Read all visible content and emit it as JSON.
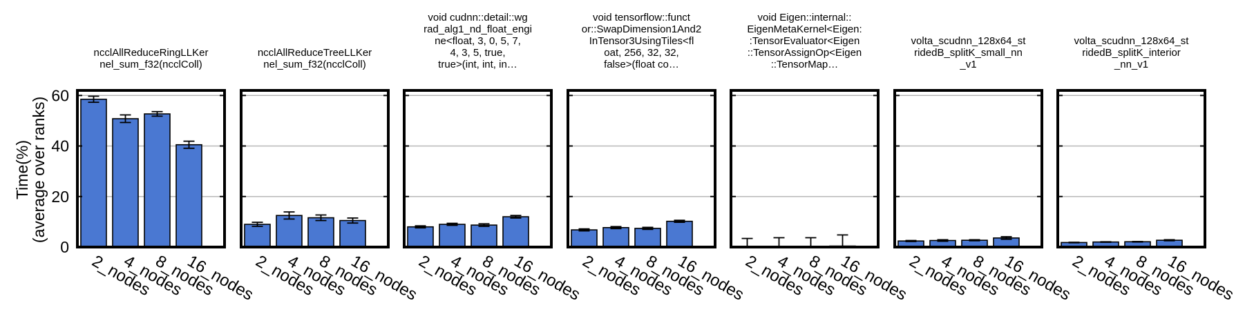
{
  "chart_data": {
    "type": "bar",
    "ylabel": [
      "Time(%)",
      "(average over ranks)"
    ],
    "ylim": [
      0,
      62
    ],
    "yticks": [
      0,
      20,
      40,
      60
    ],
    "grid": "horizontal",
    "bar_color": "#4a78d2",
    "categories": [
      "2_nodes",
      "4_nodes",
      "8_nodes",
      "16_nodes"
    ],
    "panels": [
      {
        "title": [
          "ncclAllReduceRingLLKer",
          "nel_sum_f32(ncclColl)"
        ],
        "values": [
          58.5,
          50.8,
          52.7,
          40.5
        ],
        "errors": [
          1.2,
          1.5,
          0.9,
          1.4
        ]
      },
      {
        "title": [
          "ncclAllReduceTreeLLKer",
          "nel_sum_f32(ncclColl)"
        ],
        "values": [
          9.0,
          12.5,
          11.6,
          10.5
        ],
        "errors": [
          0.8,
          1.4,
          1.1,
          1.0
        ]
      },
      {
        "title": [
          "void cudnn::detail::wg",
          "rad_alg1_nd_float_engi",
          "ne<float, 3, 0, 5, 7,",
          "4, 3, 5, true,",
          "true>(int, int, in…"
        ],
        "values": [
          8.0,
          9.0,
          8.7,
          12.0
        ],
        "errors": [
          0.4,
          0.4,
          0.5,
          0.5
        ]
      },
      {
        "title": [
          "void tensorflow::funct",
          "or::SwapDimension1And2",
          "InTensor3UsingTiles<fl",
          "oat, 256, 32, 32,",
          "false>(float co…"
        ],
        "values": [
          6.8,
          7.7,
          7.4,
          10.2
        ],
        "errors": [
          0.4,
          0.4,
          0.4,
          0.4
        ]
      },
      {
        "title": [
          "void Eigen::internal::",
          "EigenMetaKernel<Eigen:",
          ":TensorEvaluator<Eigen",
          "::TensorAssignOp<Eigen",
          "::TensorMap…"
        ],
        "values": [
          0.2,
          0.3,
          0.3,
          0.4
        ],
        "errors": [
          3.2,
          3.4,
          3.4,
          4.4
        ]
      },
      {
        "title": [
          "volta_scudnn_128x64_st",
          "ridedB_splitK_small_nn",
          "_v1"
        ],
        "values": [
          2.4,
          2.6,
          2.7,
          3.6
        ],
        "errors": [
          0.2,
          0.3,
          0.2,
          0.5
        ]
      },
      {
        "title": [
          "volta_scudnn_128x64_st",
          "ridedB_splitK_interior",
          "_nn_v1"
        ],
        "values": [
          1.8,
          2.0,
          2.1,
          2.7
        ],
        "errors": [
          0.1,
          0.1,
          0.1,
          0.2
        ]
      }
    ]
  }
}
